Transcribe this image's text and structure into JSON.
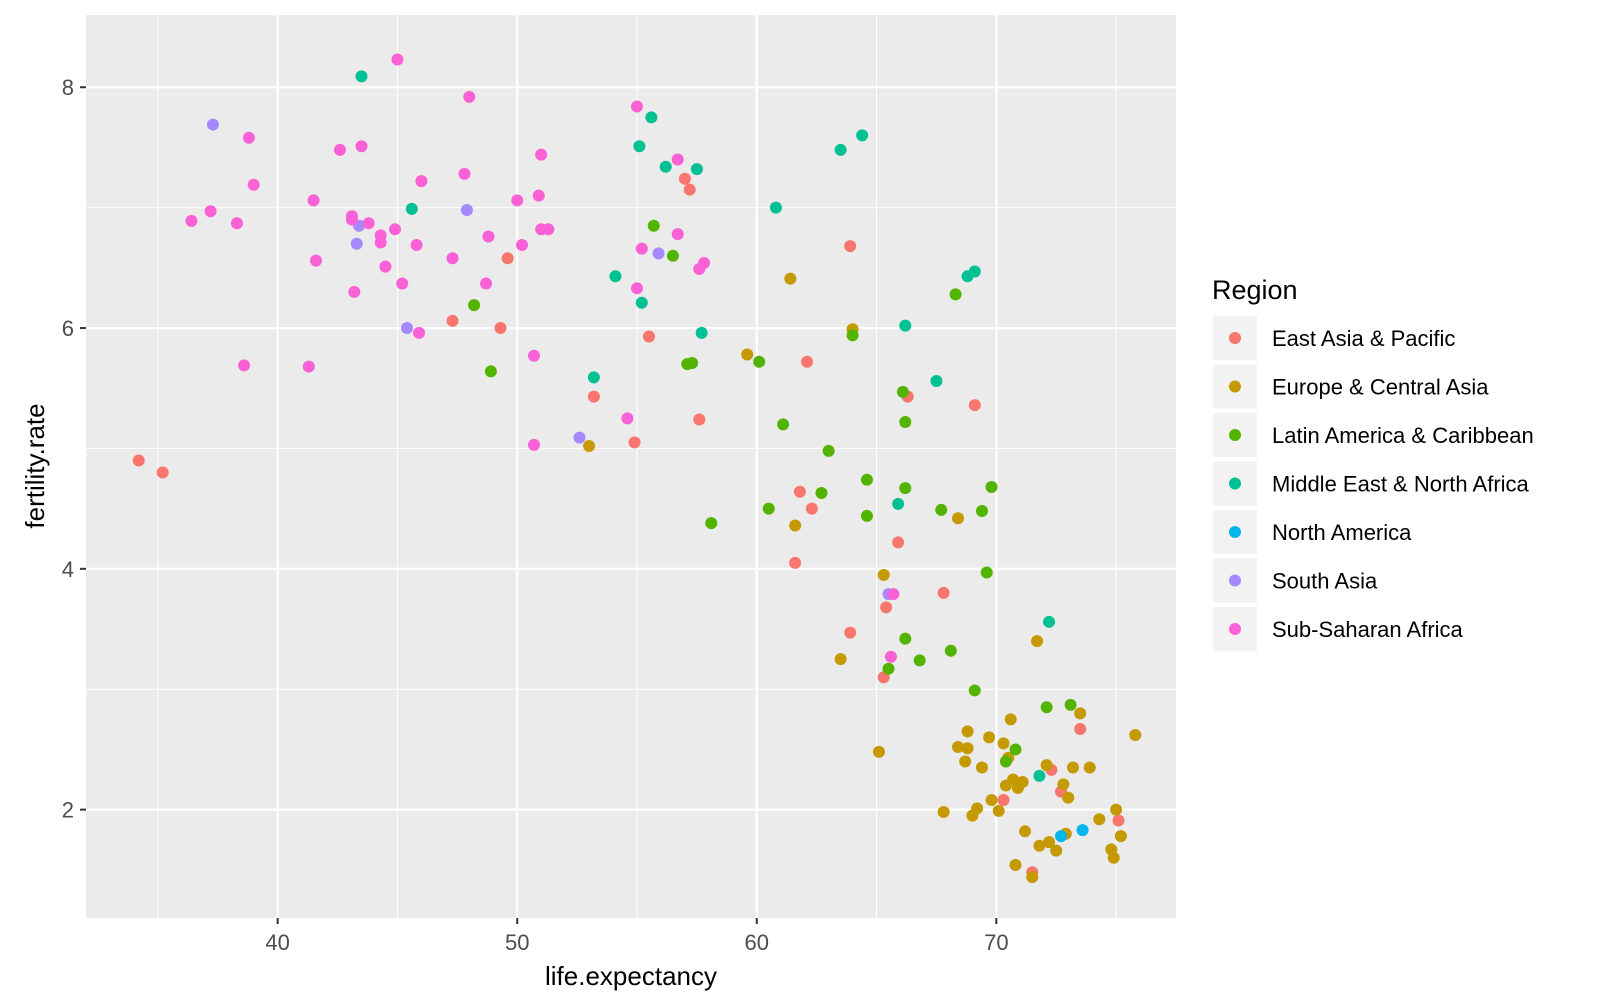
{
  "chart_data": {
    "type": "scatter",
    "title": "",
    "xlabel": "life.expectancy",
    "ylabel": "fertility.rate",
    "xlim": [
      32,
      77.5
    ],
    "ylim": [
      1.1,
      8.6
    ],
    "xticks": [
      40,
      50,
      60,
      70
    ],
    "yticks": [
      2,
      4,
      6,
      8
    ],
    "grid": true,
    "legend": {
      "title": "Region",
      "placement": "right"
    },
    "series": [
      {
        "name": "East Asia & Pacific",
        "color": "#F8766D",
        "points": [
          [
            34.2,
            4.9
          ],
          [
            35.2,
            4.8
          ],
          [
            47.3,
            6.06
          ],
          [
            49.3,
            6.0
          ],
          [
            49.6,
            6.58
          ],
          [
            53.2,
            5.43
          ],
          [
            54.9,
            5.05
          ],
          [
            55.5,
            5.93
          ],
          [
            57.0,
            7.24
          ],
          [
            57.2,
            7.15
          ],
          [
            57.6,
            5.24
          ],
          [
            61.6,
            4.05
          ],
          [
            61.8,
            4.64
          ],
          [
            62.1,
            5.72
          ],
          [
            62.3,
            4.5
          ],
          [
            63.9,
            3.47
          ],
          [
            63.9,
            6.68
          ],
          [
            65.3,
            3.1
          ],
          [
            65.4,
            3.68
          ],
          [
            65.9,
            4.22
          ],
          [
            66.3,
            5.43
          ],
          [
            67.8,
            3.8
          ],
          [
            69.1,
            5.36
          ],
          [
            70.3,
            2.08
          ],
          [
            71.5,
            1.48
          ],
          [
            72.3,
            2.33
          ],
          [
            72.7,
            2.15
          ],
          [
            73.5,
            2.67
          ],
          [
            75.1,
            1.91
          ]
        ]
      },
      {
        "name": "Europe & Central Asia",
        "color": "#C49A00",
        "points": [
          [
            53.0,
            5.02
          ],
          [
            59.6,
            5.78
          ],
          [
            61.4,
            6.41
          ],
          [
            61.6,
            4.36
          ],
          [
            63.5,
            3.25
          ],
          [
            64.0,
            5.99
          ],
          [
            65.1,
            2.48
          ],
          [
            65.3,
            3.95
          ],
          [
            67.8,
            1.98
          ],
          [
            68.4,
            4.42
          ],
          [
            68.4,
            2.52
          ],
          [
            68.7,
            2.4
          ],
          [
            68.8,
            2.51
          ],
          [
            68.8,
            2.65
          ],
          [
            69.0,
            1.95
          ],
          [
            69.2,
            2.01
          ],
          [
            69.4,
            2.35
          ],
          [
            69.7,
            2.6
          ],
          [
            69.8,
            2.08
          ],
          [
            70.1,
            1.99
          ],
          [
            70.3,
            2.55
          ],
          [
            70.4,
            2.2
          ],
          [
            70.5,
            2.43
          ],
          [
            70.6,
            2.75
          ],
          [
            70.7,
            2.25
          ],
          [
            70.8,
            1.54
          ],
          [
            70.9,
            2.18
          ],
          [
            71.1,
            2.23
          ],
          [
            71.2,
            1.82
          ],
          [
            71.5,
            1.44
          ],
          [
            71.7,
            3.4
          ],
          [
            71.8,
            1.7
          ],
          [
            72.1,
            2.37
          ],
          [
            72.2,
            1.73
          ],
          [
            72.5,
            1.66
          ],
          [
            72.8,
            2.21
          ],
          [
            72.9,
            1.8
          ],
          [
            73.0,
            2.1
          ],
          [
            73.2,
            2.35
          ],
          [
            73.5,
            2.8
          ],
          [
            73.9,
            2.35
          ],
          [
            74.3,
            1.92
          ],
          [
            74.8,
            1.67
          ],
          [
            74.9,
            1.6
          ],
          [
            75.0,
            2.0
          ],
          [
            75.2,
            1.78
          ],
          [
            75.8,
            2.62
          ]
        ]
      },
      {
        "name": "Latin America & Caribbean",
        "color": "#53B400",
        "points": [
          [
            48.2,
            6.19
          ],
          [
            48.9,
            5.64
          ],
          [
            55.7,
            6.85
          ],
          [
            56.5,
            6.6
          ],
          [
            57.1,
            5.7
          ],
          [
            57.3,
            5.71
          ],
          [
            58.1,
            4.38
          ],
          [
            60.1,
            5.72
          ],
          [
            60.5,
            4.5
          ],
          [
            61.1,
            5.2
          ],
          [
            62.7,
            4.63
          ],
          [
            63.0,
            4.98
          ],
          [
            64.0,
            5.94
          ],
          [
            64.6,
            4.74
          ],
          [
            64.6,
            4.44
          ],
          [
            65.5,
            3.17
          ],
          [
            66.1,
            5.47
          ],
          [
            66.2,
            5.22
          ],
          [
            66.2,
            3.42
          ],
          [
            66.2,
            4.67
          ],
          [
            66.8,
            3.24
          ],
          [
            67.7,
            4.49
          ],
          [
            68.1,
            3.32
          ],
          [
            68.3,
            6.28
          ],
          [
            69.1,
            2.99
          ],
          [
            69.4,
            4.48
          ],
          [
            69.6,
            3.97
          ],
          [
            69.8,
            4.68
          ],
          [
            70.4,
            2.4
          ],
          [
            70.8,
            2.5
          ],
          [
            72.1,
            2.85
          ],
          [
            73.1,
            2.87
          ]
        ]
      },
      {
        "name": "Middle East & North Africa",
        "color": "#00C094",
        "points": [
          [
            43.5,
            8.09
          ],
          [
            45.6,
            6.99
          ],
          [
            53.2,
            5.59
          ],
          [
            54.1,
            6.43
          ],
          [
            55.1,
            7.51
          ],
          [
            55.2,
            6.21
          ],
          [
            55.6,
            7.75
          ],
          [
            56.2,
            7.34
          ],
          [
            57.5,
            7.32
          ],
          [
            57.7,
            5.96
          ],
          [
            60.8,
            7.0
          ],
          [
            63.5,
            7.48
          ],
          [
            64.4,
            7.6
          ],
          [
            65.9,
            4.54
          ],
          [
            66.2,
            6.02
          ],
          [
            67.5,
            5.56
          ],
          [
            68.8,
            6.43
          ],
          [
            69.1,
            6.47
          ],
          [
            71.8,
            2.28
          ],
          [
            72.2,
            3.56
          ]
        ]
      },
      {
        "name": "North America",
        "color": "#00B6EB",
        "points": [
          [
            72.7,
            1.78
          ],
          [
            73.6,
            1.83
          ]
        ]
      },
      {
        "name": "South Asia",
        "color": "#A58AFF",
        "points": [
          [
            37.3,
            7.69
          ],
          [
            43.3,
            6.7
          ],
          [
            43.4,
            6.85
          ],
          [
            45.4,
            6.0
          ],
          [
            47.9,
            6.98
          ],
          [
            52.6,
            5.09
          ],
          [
            55.9,
            6.62
          ],
          [
            65.5,
            3.79
          ]
        ]
      },
      {
        "name": "Sub-Saharan Africa",
        "color": "#FB61D7",
        "points": [
          [
            36.4,
            6.89
          ],
          [
            37.2,
            6.97
          ],
          [
            38.3,
            6.87
          ],
          [
            38.6,
            5.69
          ],
          [
            38.8,
            7.58
          ],
          [
            39.0,
            7.19
          ],
          [
            41.3,
            5.68
          ],
          [
            41.5,
            7.06
          ],
          [
            41.6,
            6.56
          ],
          [
            42.6,
            7.48
          ],
          [
            43.1,
            6.93
          ],
          [
            43.1,
            6.9
          ],
          [
            43.2,
            6.3
          ],
          [
            43.5,
            7.51
          ],
          [
            43.8,
            6.87
          ],
          [
            44.3,
            6.77
          ],
          [
            44.3,
            6.71
          ],
          [
            44.5,
            6.51
          ],
          [
            44.9,
            6.82
          ],
          [
            45.0,
            8.23
          ],
          [
            45.2,
            6.37
          ],
          [
            45.8,
            6.69
          ],
          [
            45.9,
            5.96
          ],
          [
            46.0,
            7.22
          ],
          [
            47.3,
            6.58
          ],
          [
            47.8,
            7.28
          ],
          [
            48.0,
            7.92
          ],
          [
            48.7,
            6.37
          ],
          [
            48.8,
            6.76
          ],
          [
            50.0,
            7.06
          ],
          [
            50.2,
            6.69
          ],
          [
            50.7,
            5.77
          ],
          [
            50.7,
            5.03
          ],
          [
            50.9,
            7.1
          ],
          [
            51.0,
            6.82
          ],
          [
            51.0,
            7.44
          ],
          [
            51.3,
            6.82
          ],
          [
            54.6,
            5.25
          ],
          [
            55.0,
            7.84
          ],
          [
            55.0,
            6.33
          ],
          [
            55.2,
            6.66
          ],
          [
            56.7,
            7.4
          ],
          [
            56.7,
            6.78
          ],
          [
            57.6,
            6.49
          ],
          [
            57.8,
            6.54
          ],
          [
            65.7,
            3.79
          ],
          [
            65.6,
            3.27
          ]
        ]
      }
    ]
  }
}
